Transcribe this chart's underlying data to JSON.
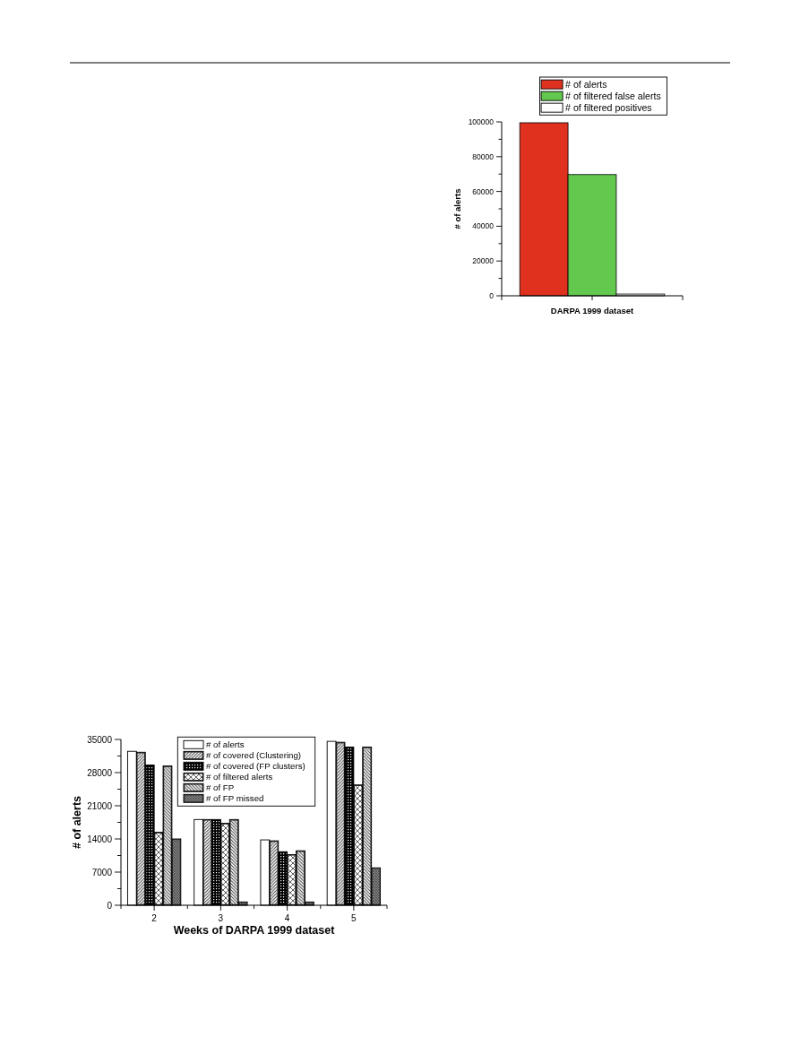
{
  "chart_data": [
    {
      "type": "bar",
      "xlabel": "DARPA 1999 dataset",
      "ylabel": "# of alerts",
      "categories": [
        null
      ],
      "series": [
        {
          "name": "# of alerts",
          "color": "#e0301e",
          "values": [
            99500
          ]
        },
        {
          "name": "# of filtered false alerts",
          "color": "#62c84e",
          "values": [
            69700
          ]
        },
        {
          "name": "# of filtered positives",
          "color": "#ffffff",
          "values": [
            1000
          ]
        }
      ],
      "ylim": [
        0,
        100000
      ],
      "yticks": [
        0,
        {
          "value": 10000,
          "label": null
        },
        20000,
        {
          "value": 30000,
          "label": null
        },
        40000,
        {
          "value": 50000,
          "label": null
        },
        60000,
        {
          "value": 70000,
          "label": null
        },
        80000,
        {
          "value": 90000,
          "label": null
        },
        100000
      ],
      "legend": "top"
    },
    {
      "type": "bar",
      "xlabel": "Weeks of DARPA 1999 dataset",
      "ylabel": "# of alerts",
      "categories": [
        "2",
        "3",
        "4",
        "5"
      ],
      "series": [
        {
          "name": "# of alerts",
          "color": "#ffffff",
          "values": [
            32500,
            18100,
            13800,
            34600
          ]
        },
        {
          "name": "# of covered (Clustering)",
          "color": "#333333",
          "values": [
            32300,
            18100,
            13600,
            34400
          ]
        },
        {
          "name": "# of covered (FP clusters)",
          "color": "#000000",
          "values": [
            29600,
            18100,
            11300,
            33400
          ]
        },
        {
          "name": "# of filtered alerts",
          "color": "#333333",
          "values": [
            15400,
            17300,
            10700,
            25400
          ]
        },
        {
          "name": "# of FP",
          "color": "#333333",
          "values": [
            29400,
            18100,
            11500,
            33400
          ]
        },
        {
          "name": "# of FP missed",
          "color": "#404040",
          "values": [
            14000,
            700,
            700,
            7900
          ]
        }
      ],
      "ylim": [
        0,
        35000
      ],
      "yticks": [
        0,
        {
          "value": 3500,
          "label": null
        },
        7000,
        {
          "value": 10500,
          "label": null
        },
        14000,
        {
          "value": 17500,
          "label": null
        },
        21000,
        {
          "value": 24500,
          "label": null
        },
        28000,
        {
          "value": 31500,
          "label": null
        },
        35000
      ],
      "legend": "top"
    }
  ]
}
